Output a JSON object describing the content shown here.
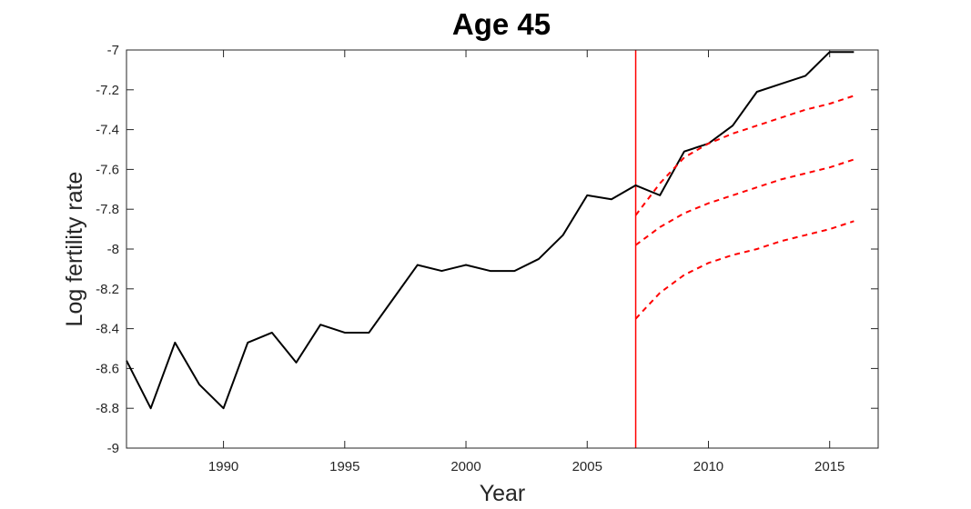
{
  "chart_data": {
    "type": "line",
    "title": "Age 45",
    "xlabel": "Year",
    "ylabel": "Log fertility rate",
    "xlim": [
      1986,
      2017
    ],
    "ylim": [
      -9,
      -7
    ],
    "xticks": [
      1990,
      1995,
      2000,
      2005,
      2010,
      2015
    ],
    "xtick_labels": [
      "1990",
      "1995",
      "2000",
      "2005",
      "2010",
      "2015"
    ],
    "yticks": [
      -7,
      -7.2,
      -7.4,
      -7.6,
      -7.8,
      -8,
      -8.2,
      -8.4,
      -8.6,
      -8.8,
      -9
    ],
    "ytick_labels": [
      "-7",
      "-7.2",
      "-7.4",
      "-7.6",
      "-7.8",
      "-8",
      "-8.2",
      "-8.4",
      "-8.6",
      "-8.8",
      "-9"
    ],
    "grid": false,
    "vline": {
      "x": 2007,
      "color": "#ff0000"
    },
    "series": [
      {
        "style": "solid",
        "color": "#000000",
        "x": [
          1986,
          1987,
          1988,
          1989,
          1990,
          1991,
          1992,
          1993,
          1994,
          1995,
          1996,
          1997,
          1998,
          1999,
          2000,
          2001,
          2002,
          2003,
          2004,
          2005,
          2006,
          2007,
          2008,
          2009,
          2010,
          2011,
          2012,
          2013,
          2014,
          2015,
          2016
        ],
        "values": [
          -8.56,
          -8.8,
          -8.47,
          -8.68,
          -8.8,
          -8.47,
          -8.42,
          -8.57,
          -8.38,
          -8.42,
          -8.42,
          -8.25,
          -8.08,
          -8.11,
          -8.08,
          -8.11,
          -8.11,
          -8.05,
          -7.93,
          -7.73,
          -7.75,
          -7.68,
          -7.73,
          -7.51,
          -7.47,
          -7.38,
          -7.21,
          -7.17,
          -7.13,
          -7.01,
          -7.01
        ]
      },
      {
        "style": "dashed",
        "color": "#ff0000",
        "x": [
          2007,
          2008,
          2009,
          2010,
          2011,
          2012,
          2013,
          2014,
          2015,
          2016
        ],
        "values": [
          -7.83,
          -7.67,
          -7.54,
          -7.47,
          -7.42,
          -7.38,
          -7.34,
          -7.3,
          -7.27,
          -7.23
        ]
      },
      {
        "style": "dashed",
        "color": "#ff0000",
        "x": [
          2007,
          2008,
          2009,
          2010,
          2011,
          2012,
          2013,
          2014,
          2015,
          2016
        ],
        "values": [
          -7.98,
          -7.89,
          -7.82,
          -7.77,
          -7.73,
          -7.69,
          -7.65,
          -7.62,
          -7.59,
          -7.55
        ]
      },
      {
        "style": "dashed",
        "color": "#ff0000",
        "x": [
          2007,
          2008,
          2009,
          2010,
          2011,
          2012,
          2013,
          2014,
          2015,
          2016
        ],
        "values": [
          -8.35,
          -8.22,
          -8.13,
          -8.07,
          -8.03,
          -8.0,
          -7.96,
          -7.93,
          -7.9,
          -7.86
        ]
      }
    ]
  }
}
